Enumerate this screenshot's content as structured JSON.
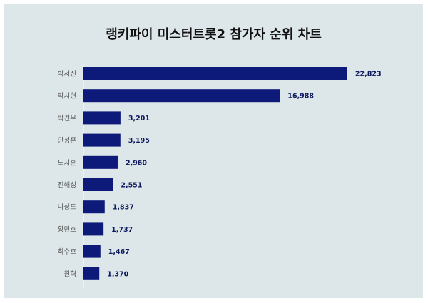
{
  "chart_data": {
    "type": "bar",
    "orientation": "horizontal",
    "title": "랭키파이 미스터트롯2 참가자 순위 차트",
    "categories": [
      "박서진",
      "박지현",
      "박건우",
      "안성훈",
      "노지훈",
      "진해성",
      "나상도",
      "황민호",
      "최수호",
      "원혁"
    ],
    "values": [
      22823,
      16988,
      3201,
      3195,
      2960,
      2551,
      1837,
      1737,
      1467,
      1370
    ],
    "value_labels": [
      "22,823",
      "16,988",
      "3,201",
      "3,195",
      "2,960",
      "2,551",
      "1,837",
      "1,737",
      "1,467",
      "1,370"
    ],
    "xlim": [
      0,
      24000
    ],
    "grid": false,
    "legend": "none",
    "bar_color": "#0d1a7a",
    "background_color": "#dde6e8"
  }
}
